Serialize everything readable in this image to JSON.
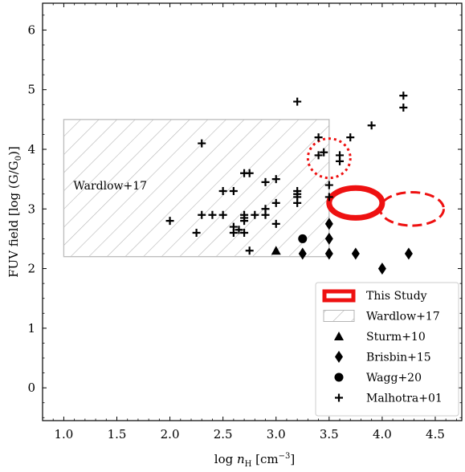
{
  "chart_data": {
    "type": "scatter",
    "xlabel": "log n_H [cm^-3]",
    "xlabel_parts": {
      "prefix": "log ",
      "var": "n",
      "sub": "H",
      "unit_open": " [cm",
      "sup": "−3",
      "unit_close": "]"
    },
    "ylabel": "FUV field [log (G/G0)]",
    "ylabel_parts": {
      "prefix": "FUV field [log (G/G",
      "sub": "0",
      "suffix": ")]"
    },
    "xlim": [
      0.8,
      4.75
    ],
    "ylim": [
      -0.55,
      6.45
    ],
    "xticks": [
      1.0,
      1.5,
      2.0,
      2.5,
      3.0,
      3.5,
      4.0,
      4.5
    ],
    "xtick_labels": [
      "1.0",
      "1.5",
      "2.0",
      "2.5",
      "3.0",
      "3.5",
      "4.0",
      "4.5"
    ],
    "yticks": [
      0,
      1,
      2,
      3,
      4,
      5,
      6
    ],
    "ytick_labels": [
      "0",
      "1",
      "2",
      "3",
      "4",
      "5",
      "6"
    ],
    "grid": false,
    "legend_position": "bottom-right",
    "annotation": "Wardlow+17",
    "wardlow_region": {
      "x": [
        1.0,
        3.5
      ],
      "y": [
        2.2,
        4.5
      ],
      "color": "#bbbbbb"
    },
    "this_study": [
      {
        "style": "solid",
        "cx": 3.75,
        "cy": 3.1,
        "rx": 0.25,
        "ry": 0.25,
        "color": "#ee1111"
      },
      {
        "style": "dashed",
        "cx": 4.28,
        "cy": 3.0,
        "rx": 0.3,
        "ry": 0.28,
        "color": "#ee1111"
      },
      {
        "style": "dotted",
        "cx": 3.5,
        "cy": 3.85,
        "rx": 0.2,
        "ry": 0.33,
        "color": "#ee1111"
      }
    ],
    "series": [
      {
        "name": "Sturm+10",
        "marker": "triangle",
        "points": [
          [
            3.0,
            2.3
          ]
        ]
      },
      {
        "name": "Brisbin+15",
        "marker": "diamond",
        "points": [
          [
            3.25,
            2.25
          ],
          [
            3.5,
            2.25
          ],
          [
            3.5,
            2.5
          ],
          [
            3.5,
            2.75
          ],
          [
            3.75,
            2.25
          ],
          [
            4.0,
            2.0
          ],
          [
            4.25,
            2.25
          ]
        ]
      },
      {
        "name": "Wagg+20",
        "marker": "circle",
        "points": [
          [
            3.25,
            2.5
          ]
        ]
      },
      {
        "name": "Malhotra+01",
        "marker": "plus",
        "points": [
          [
            2.0,
            2.8
          ],
          [
            2.25,
            2.6
          ],
          [
            2.3,
            2.9
          ],
          [
            2.3,
            4.1
          ],
          [
            2.4,
            2.9
          ],
          [
            2.5,
            2.9
          ],
          [
            2.5,
            3.3
          ],
          [
            2.6,
            2.6
          ],
          [
            2.6,
            2.7
          ],
          [
            2.6,
            3.3
          ],
          [
            2.65,
            2.65
          ],
          [
            2.7,
            2.6
          ],
          [
            2.7,
            2.8
          ],
          [
            2.7,
            2.85
          ],
          [
            2.7,
            2.9
          ],
          [
            2.7,
            3.6
          ],
          [
            2.75,
            2.3
          ],
          [
            2.75,
            3.6
          ],
          [
            2.8,
            2.9
          ],
          [
            2.9,
            2.9
          ],
          [
            2.9,
            3.0
          ],
          [
            2.9,
            3.45
          ],
          [
            3.0,
            2.75
          ],
          [
            3.0,
            3.1
          ],
          [
            3.0,
            3.5
          ],
          [
            3.2,
            3.1
          ],
          [
            3.2,
            3.2
          ],
          [
            3.2,
            3.25
          ],
          [
            3.2,
            3.3
          ],
          [
            3.2,
            4.8
          ],
          [
            3.4,
            3.9
          ],
          [
            3.4,
            4.2
          ],
          [
            3.45,
            3.95
          ],
          [
            3.5,
            3.2
          ],
          [
            3.5,
            3.4
          ],
          [
            3.6,
            3.8
          ],
          [
            3.6,
            3.9
          ],
          [
            3.7,
            4.2
          ],
          [
            3.9,
            4.4
          ],
          [
            4.2,
            4.7
          ],
          [
            4.2,
            4.9
          ]
        ]
      }
    ],
    "legend": [
      {
        "label": "This Study",
        "symbol": "this-study"
      },
      {
        "label": "Wardlow+17",
        "symbol": "hatch"
      },
      {
        "label": "Sturm+10",
        "symbol": "triangle"
      },
      {
        "label": "Brisbin+15",
        "symbol": "diamond"
      },
      {
        "label": "Wagg+20",
        "symbol": "circle"
      },
      {
        "label": "Malhotra+01",
        "symbol": "plus"
      }
    ]
  }
}
